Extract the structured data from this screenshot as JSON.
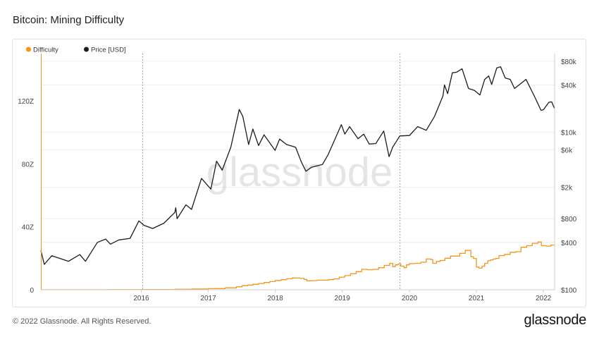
{
  "header": {
    "title": "Bitcoin: Mining Difficulty"
  },
  "footer": {
    "copyright": "© 2022 Glassnode. All Rights Reserved.",
    "logo_text": "glassnode"
  },
  "chart_data": {
    "type": "line",
    "title": "Bitcoin: Mining Difficulty",
    "watermark": "glassnode",
    "legend": {
      "placement": "top-left",
      "entries": [
        {
          "name": "Difficulty",
          "color": "#f7931a"
        },
        {
          "name": "Price [USD]",
          "color": "#1c1c1c"
        }
      ]
    },
    "grid": true,
    "x": {
      "type": "date",
      "range": [
        "2015-01-01",
        "2022-08-31"
      ],
      "tick_labels": [
        "2016",
        "2017",
        "2018",
        "2019",
        "2020",
        "2021",
        "2022"
      ]
    },
    "halvings": [
      "2016-07-09",
      "2020-05-11"
    ],
    "y_left": {
      "label": "",
      "range": [
        0,
        150
      ],
      "tick_values": [
        0,
        40,
        80,
        120
      ],
      "tick_labels": [
        "0",
        "40Z",
        "80Z",
        "120Z"
      ]
    },
    "y_right": {
      "label": "",
      "scale": "log",
      "range": [
        100,
        100000
      ],
      "tick_values": [
        100,
        400,
        800,
        2000,
        6000,
        10000,
        40000,
        80000
      ],
      "tick_labels": [
        "$100",
        "$400",
        "$800",
        "$2k",
        "$6k",
        "$10k",
        "$40k",
        "$80k"
      ]
    },
    "series": [
      {
        "name": "Difficulty",
        "axis": "left",
        "color": "#f7931a",
        "step": true,
        "points": [
          [
            "2015-01-01",
            0.04
          ],
          [
            "2015-07-01",
            0.05
          ],
          [
            "2016-01-01",
            0.1
          ],
          [
            "2016-07-01",
            0.2
          ],
          [
            "2017-01-01",
            0.33
          ],
          [
            "2017-04-01",
            0.5
          ],
          [
            "2017-07-01",
            0.7
          ],
          [
            "2017-10-01",
            1.2
          ],
          [
            "2017-12-01",
            1.9
          ],
          [
            "2018-01-01",
            2.6
          ],
          [
            "2018-02-01",
            3.0
          ],
          [
            "2018-03-01",
            3.5
          ],
          [
            "2018-04-01",
            4.0
          ],
          [
            "2018-05-01",
            4.6
          ],
          [
            "2018-06-01",
            5.2
          ],
          [
            "2018-07-01",
            5.9
          ],
          [
            "2018-08-01",
            6.4
          ],
          [
            "2018-09-01",
            7.0
          ],
          [
            "2018-10-01",
            7.5
          ],
          [
            "2018-10-25",
            7.45
          ],
          [
            "2018-11-15",
            7.2
          ],
          [
            "2018-12-05",
            6.6
          ],
          [
            "2018-12-20",
            5.7
          ],
          [
            "2019-01-15",
            5.8
          ],
          [
            "2019-02-15",
            6.1
          ],
          [
            "2019-03-15",
            6.1
          ],
          [
            "2019-04-15",
            6.4
          ],
          [
            "2019-05-15",
            6.9
          ],
          [
            "2019-06-15",
            8.0
          ],
          [
            "2019-07-15",
            9.0
          ],
          [
            "2019-08-15",
            10.2
          ],
          [
            "2019-09-15",
            11.5
          ],
          [
            "2019-10-15",
            13.0
          ],
          [
            "2019-11-15",
            12.7
          ],
          [
            "2019-12-15",
            13.0
          ],
          [
            "2020-01-15",
            14.0
          ],
          [
            "2020-02-15",
            15.5
          ],
          [
            "2020-03-15",
            16.8
          ],
          [
            "2020-04-01",
            14.6
          ],
          [
            "2020-04-15",
            15.8
          ],
          [
            "2020-05-01",
            16.4
          ],
          [
            "2020-05-15",
            15.0
          ],
          [
            "2020-06-01",
            14.0
          ],
          [
            "2020-06-15",
            15.8
          ],
          [
            "2020-07-01",
            16.6
          ],
          [
            "2020-08-01",
            16.8
          ],
          [
            "2020-09-01",
            17.5
          ],
          [
            "2020-10-01",
            19.5
          ],
          [
            "2020-10-25",
            19.2
          ],
          [
            "2020-11-05",
            16.8
          ],
          [
            "2020-11-25",
            18.0
          ],
          [
            "2020-12-15",
            18.6
          ],
          [
            "2021-01-10",
            20.0
          ],
          [
            "2021-02-10",
            21.4
          ],
          [
            "2021-03-10",
            21.4
          ],
          [
            "2021-04-01",
            23.1
          ],
          [
            "2021-05-01",
            25.0
          ],
          [
            "2021-05-15",
            25.0
          ],
          [
            "2021-06-01",
            21.0
          ],
          [
            "2021-06-15",
            19.9
          ],
          [
            "2021-07-01",
            14.4
          ],
          [
            "2021-07-15",
            13.7
          ],
          [
            "2021-08-01",
            15.0
          ],
          [
            "2021-08-15",
            16.8
          ],
          [
            "2021-09-01",
            18.4
          ],
          [
            "2021-09-15",
            19.0
          ],
          [
            "2021-10-01",
            19.5
          ],
          [
            "2021-10-15",
            19.9
          ],
          [
            "2021-11-01",
            21.7
          ],
          [
            "2021-12-01",
            22.5
          ],
          [
            "2022-01-01",
            23.8
          ],
          [
            "2022-02-01",
            24.2
          ],
          [
            "2022-03-01",
            27.0
          ],
          [
            "2022-04-01",
            28.0
          ],
          [
            "2022-05-01",
            29.5
          ],
          [
            "2022-06-01",
            30.3
          ],
          [
            "2022-06-20",
            28.0
          ],
          [
            "2022-07-15",
            27.7
          ],
          [
            "2022-08-10",
            28.4
          ],
          [
            "2022-08-31",
            28.4
          ]
        ]
      },
      {
        "name": "Price [USD]",
        "axis": "right",
        "color": "#1c1c1c",
        "step": false,
        "points": [
          [
            "2015-01-01",
            315
          ],
          [
            "2015-01-20",
            210
          ],
          [
            "2015-03-01",
            270
          ],
          [
            "2015-06-01",
            230
          ],
          [
            "2015-08-01",
            280
          ],
          [
            "2015-09-01",
            230
          ],
          [
            "2015-11-05",
            400
          ],
          [
            "2015-12-20",
            440
          ],
          [
            "2016-01-15",
            380
          ],
          [
            "2016-03-01",
            430
          ],
          [
            "2016-05-01",
            450
          ],
          [
            "2016-06-18",
            750
          ],
          [
            "2016-07-15",
            660
          ],
          [
            "2016-09-01",
            600
          ],
          [
            "2016-11-01",
            700
          ],
          [
            "2016-12-31",
            960
          ],
          [
            "2017-01-05",
            1100
          ],
          [
            "2017-01-12",
            800
          ],
          [
            "2017-03-01",
            1200
          ],
          [
            "2017-04-01",
            1050
          ],
          [
            "2017-05-25",
            2600
          ],
          [
            "2017-07-15",
            1900
          ],
          [
            "2017-08-15",
            4300
          ],
          [
            "2017-09-15",
            3300
          ],
          [
            "2017-11-01",
            6500
          ],
          [
            "2017-12-17",
            19500
          ],
          [
            "2018-01-05",
            16000
          ],
          [
            "2018-02-06",
            7000
          ],
          [
            "2018-03-01",
            11000
          ],
          [
            "2018-04-01",
            6800
          ],
          [
            "2018-05-01",
            9300
          ],
          [
            "2018-06-30",
            5900
          ],
          [
            "2018-07-25",
            8200
          ],
          [
            "2018-09-01",
            7000
          ],
          [
            "2018-10-20",
            6450
          ],
          [
            "2018-11-20",
            4200
          ],
          [
            "2018-12-15",
            3200
          ],
          [
            "2019-01-15",
            3600
          ],
          [
            "2019-03-15",
            3900
          ],
          [
            "2019-04-15",
            5200
          ],
          [
            "2019-06-26",
            12500
          ],
          [
            "2019-07-15",
            9500
          ],
          [
            "2019-08-10",
            11800
          ],
          [
            "2019-09-25",
            8300
          ],
          [
            "2019-10-26",
            9500
          ],
          [
            "2019-11-25",
            7100
          ],
          [
            "2019-12-31",
            7200
          ],
          [
            "2020-02-12",
            10400
          ],
          [
            "2020-03-12",
            4900
          ],
          [
            "2020-04-01",
            6500
          ],
          [
            "2020-05-10",
            9000
          ],
          [
            "2020-07-01",
            9100
          ],
          [
            "2020-08-15",
            11800
          ],
          [
            "2020-10-01",
            10600
          ],
          [
            "2020-11-15",
            16000
          ],
          [
            "2020-12-31",
            29000
          ],
          [
            "2021-01-08",
            40000
          ],
          [
            "2021-01-25",
            31000
          ],
          [
            "2021-02-20",
            57000
          ],
          [
            "2021-03-15",
            58000
          ],
          [
            "2021-04-14",
            64000
          ],
          [
            "2021-05-19",
            36000
          ],
          [
            "2021-06-20",
            34000
          ],
          [
            "2021-07-20",
            29800
          ],
          [
            "2021-08-15",
            47000
          ],
          [
            "2021-09-06",
            52000
          ],
          [
            "2021-09-22",
            40500
          ],
          [
            "2021-10-20",
            66000
          ],
          [
            "2021-11-10",
            68000
          ],
          [
            "2021-12-05",
            49000
          ],
          [
            "2022-01-01",
            47000
          ],
          [
            "2022-01-25",
            36000
          ],
          [
            "2022-03-28",
            47000
          ],
          [
            "2022-05-12",
            29000
          ],
          [
            "2022-06-18",
            19000
          ],
          [
            "2022-07-01",
            19300
          ],
          [
            "2022-07-30",
            24000
          ],
          [
            "2022-08-15",
            24400
          ],
          [
            "2022-08-31",
            20000
          ]
        ]
      }
    ]
  }
}
